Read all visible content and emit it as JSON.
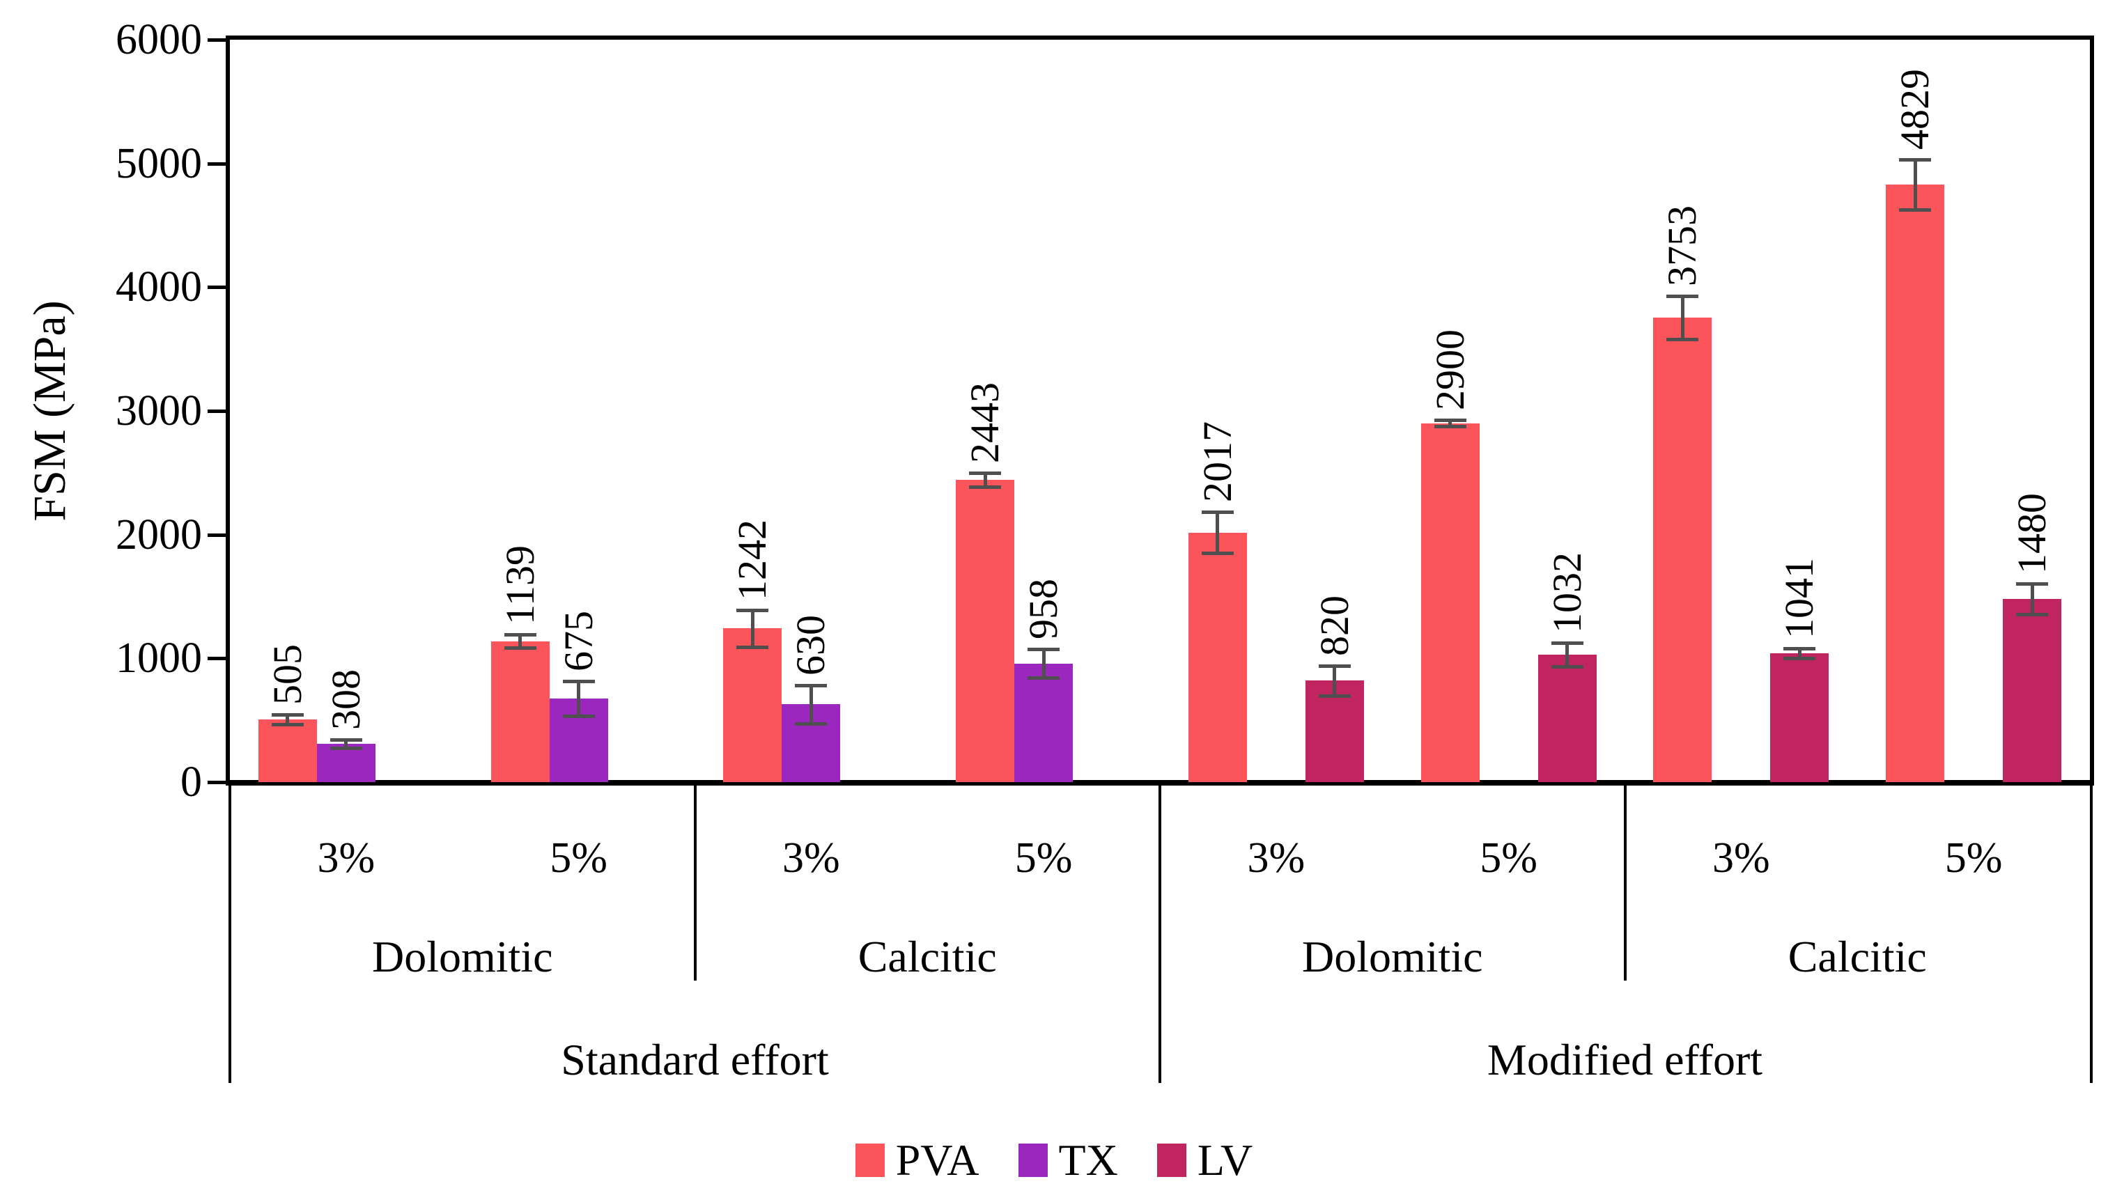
{
  "chart_data": {
    "type": "bar",
    "title": "",
    "ylabel": "FSM (MPa)",
    "ylim": [
      0,
      6000
    ],
    "yticks": [
      0,
      1000,
      2000,
      3000,
      4000,
      5000,
      6000
    ],
    "grid": false,
    "legend_position": "bottom",
    "value_labels_rotated": true,
    "error_bars": true,
    "categories": [
      "3%",
      "5%",
      "3%",
      "5%",
      "3%",
      "5%",
      "3%",
      "5%"
    ],
    "axis_levels": {
      "percent_labels": [
        "3%",
        "5%",
        "3%",
        "5%",
        "3%",
        "5%",
        "3%",
        "5%"
      ],
      "rock_labels": [
        "Dolomitic",
        "Calcitic",
        "Dolomitic",
        "Calcitic"
      ],
      "effort_labels": [
        "Standard effort",
        "Modified effort"
      ]
    },
    "series": [
      {
        "name": "PVA",
        "color": "#FB545A",
        "slot": 0,
        "values": [
          505,
          1139,
          1242,
          2443,
          2017,
          2900,
          3753,
          4829
        ],
        "errors": [
          40,
          55,
          150,
          55,
          165,
          25,
          175,
          205
        ]
      },
      {
        "name": "TX",
        "color": "#9C27BF",
        "slot": 1,
        "values": [
          308,
          675,
          630,
          958,
          null,
          null,
          null,
          null
        ],
        "errors": [
          35,
          140,
          155,
          115,
          null,
          null,
          null,
          null
        ]
      },
      {
        "name": "LV",
        "color": "#C02560",
        "slot": 2,
        "values": [
          null,
          null,
          null,
          null,
          820,
          1032,
          1041,
          1480
        ],
        "errors": [
          null,
          null,
          null,
          null,
          120,
          95,
          40,
          125
        ]
      }
    ]
  },
  "legend": {
    "items": [
      {
        "label": "PVA",
        "color": "#FB545A"
      },
      {
        "label": "TX",
        "color": "#9C27BF"
      },
      {
        "label": "LV",
        "color": "#C02560"
      }
    ]
  },
  "colors": {
    "axis": "#000000",
    "error_bar": "#4f4f4f",
    "background": "#ffffff"
  }
}
